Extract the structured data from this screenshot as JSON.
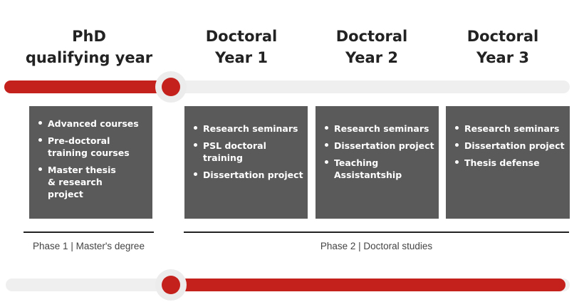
{
  "columns": [
    {
      "title_lines": [
        "PhD",
        "qualifying year"
      ],
      "items": [
        "Advanced courses",
        "Pre-doctoral training courses",
        "Master thesis & research project"
      ]
    },
    {
      "title_lines": [
        "Doctoral",
        "Year 1"
      ],
      "items": [
        "Research seminars",
        "PSL doctoral training",
        "Dissertation project"
      ]
    },
    {
      "title_lines": [
        "Doctoral",
        "Year 2"
      ],
      "items": [
        "Research seminars",
        "Dissertation project",
        "Teaching Assistantship"
      ]
    },
    {
      "title_lines": [
        "Doctoral",
        "Year 3"
      ],
      "items": [
        "Research seminars",
        "Dissertation project",
        "Thesis defense"
      ]
    }
  ],
  "phases": [
    "Phase 1 | Master's degree",
    "Phase 2 | Doctoral studies"
  ],
  "colors": {
    "accent": "#c4201c",
    "track": "#efefef",
    "box": "#5a5a5a"
  },
  "top_slider": {
    "progress": 0.27
  },
  "bottom_slider": {
    "progress_start": 0.27
  }
}
